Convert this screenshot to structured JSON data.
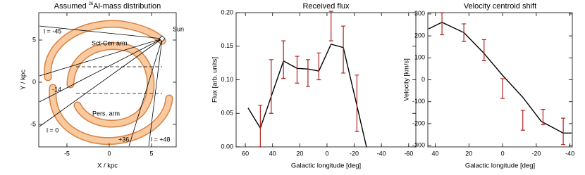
{
  "chart_data": [
    {
      "type": "diagram",
      "title_lead": "Assumed",
      "title_superscript": "26",
      "title": "Al-mass distribution",
      "x_label": "X / kpc",
      "y_label": "Y / kpc",
      "xlim": [
        -8.33,
        7.92
      ],
      "ylim": [
        -7.67,
        8.25
      ],
      "xticks": [
        -5,
        0,
        5
      ],
      "yticks": [
        -5,
        0,
        5
      ],
      "annotations": [
        "Sun",
        "Sct-Cen arm",
        "Pers. arm",
        "l = -45",
        "-14",
        "l = 0",
        "+36",
        "l = +48"
      ]
    },
    {
      "type": "line",
      "title": "Received flux",
      "x_label": "Galactic longitude [deg]",
      "y_label": "Flux [arb. units]",
      "xlim": [
        66.8,
        -65.3
      ],
      "ylim": [
        0,
        0.2
      ],
      "xticks": [
        60,
        40,
        20,
        0,
        -20,
        -40,
        -60
      ],
      "yticks": [
        {
          "value": 0,
          "label": "0.00"
        },
        {
          "value": 0.05,
          "label": "0.05"
        },
        {
          "value": 0.1,
          "label": "0.10"
        },
        {
          "value": 0.15,
          "label": "0.15"
        },
        {
          "value": 0.2,
          "label": "0.20"
        }
      ],
      "series": [
        {
          "type": "line",
          "color": "#000000",
          "x": [
            58,
            49,
            32,
            22,
            14,
            6,
            -3,
            -12,
            -21,
            -29
          ],
          "values": [
            0.058,
            0.028,
            0.128,
            0.117,
            0.116,
            0.113,
            0.153,
            0.148,
            0.07,
            0.0
          ]
        },
        {
          "type": "errorbar",
          "color": "#b22222",
          "x": [
            49,
            41,
            32,
            22,
            14,
            6,
            -3,
            -12,
            -22
          ],
          "values": [
            0.031,
            0.09,
            0.13,
            0.115,
            0.11,
            0.12,
            0.18,
            0.145,
            0.065
          ],
          "errors": [
            0.031,
            0.04,
            0.028,
            0.02,
            0.02,
            0.02,
            0.022,
            0.035,
            0.042
          ]
        }
      ]
    },
    {
      "type": "line",
      "title": "Velocity centroid shift",
      "x_label": "Galactic longitude [deg]",
      "y_label": "Velocity [km/s]",
      "xlim": [
        44.4,
        -41.4
      ],
      "ylim": [
        -306,
        306
      ],
      "xticks": [
        40,
        20,
        0,
        -20,
        -40
      ],
      "yticks": [
        -300,
        -200,
        -100,
        0,
        100,
        200,
        300
      ],
      "series": [
        {
          "type": "line",
          "color": "#000000",
          "x": [
            44,
            36,
            23,
            11,
            0,
            -12,
            -23,
            -36,
            -41
          ],
          "values": [
            232,
            262,
            215,
            120,
            20,
            -80,
            -190,
            -243,
            -243
          ]
        },
        {
          "type": "errorbar",
          "color": "#b22222",
          "x": [
            36,
            23,
            11,
            0,
            -12,
            -24,
            -36
          ],
          "values": [
            255,
            215,
            135,
            -40,
            -185,
            -170,
            -235
          ],
          "errors": [
            50,
            40,
            48,
            45,
            45,
            35,
            60
          ]
        }
      ]
    }
  ]
}
